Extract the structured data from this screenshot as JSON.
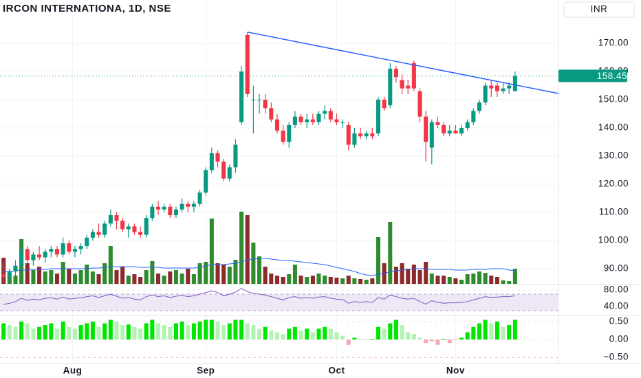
{
  "chart_data": [
    {
      "type": "candlestick",
      "title": "IRCON INTERNATIONA, 1D, NSE",
      "currency": "INR",
      "up_color": "#089981",
      "down_color": "#f23645",
      "volume_up_color": "#2e8b2e",
      "volume_down_color": "#8b2b2b",
      "volume_ma_color": "#2962ff",
      "trendline_color": "#2962ff",
      "grid": true,
      "xlim": [
        -0.6,
        93.3
      ],
      "ylim": [
        84.6,
        185.4
      ],
      "yticks": [
        {
          "value": 170,
          "label": "170.00"
        },
        {
          "value": 160,
          "label": "160.00"
        },
        {
          "value": 150,
          "label": "150.00"
        },
        {
          "value": 140,
          "label": "140.00"
        },
        {
          "value": 130,
          "label": "130.00"
        },
        {
          "value": 120,
          "label": "120.00"
        },
        {
          "value": 110,
          "label": "110.00"
        },
        {
          "value": 100,
          "label": "100.00"
        },
        {
          "value": 90,
          "label": "90.00"
        }
      ],
      "xticks": [
        {
          "value": 11.6,
          "label": "Aug"
        },
        {
          "value": 34,
          "label": "Sep"
        },
        {
          "value": 56,
          "label": "Oct"
        },
        {
          "value": 76,
          "label": "Nov"
        }
      ],
      "trendline": {
        "x": [
          41,
          93.3
        ],
        "y": [
          174,
          152.2
        ]
      },
      "ohlc": [
        [
          88,
          92,
          85,
          87
        ],
        [
          87,
          90,
          85,
          89
        ],
        [
          89,
          93,
          87,
          91
        ],
        [
          91,
          100,
          90,
          97
        ],
        [
          97,
          98,
          92,
          93
        ],
        [
          93,
          96,
          91,
          95
        ],
        [
          95,
          98,
          93,
          94
        ],
        [
          94,
          97,
          92,
          96
        ],
        [
          96,
          98,
          94,
          97
        ],
        [
          97,
          98,
          94,
          95
        ],
        [
          95,
          101,
          94,
          99
        ],
        [
          99,
          100,
          95,
          96
        ],
        [
          96,
          98,
          94,
          97
        ],
        [
          97,
          99,
          95,
          98
        ],
        [
          98,
          102,
          97,
          101
        ],
        [
          101,
          104,
          100,
          103
        ],
        [
          103,
          106,
          101,
          102
        ],
        [
          102,
          107,
          101,
          106
        ],
        [
          106,
          111,
          105,
          109
        ],
        [
          109,
          110,
          104,
          107
        ],
        [
          107,
          108,
          103,
          104
        ],
        [
          104,
          106,
          101,
          105
        ],
        [
          105,
          106,
          102,
          103
        ],
        [
          103,
          105,
          101,
          102
        ],
        [
          102,
          109,
          101,
          108
        ],
        [
          108,
          113,
          107,
          112
        ],
        [
          112,
          114,
          109,
          111
        ],
        [
          111,
          113,
          110,
          112
        ],
        [
          112,
          113,
          108,
          109
        ],
        [
          109,
          112,
          108,
          111
        ],
        [
          111,
          115,
          110,
          113
        ],
        [
          113,
          114,
          110,
          112
        ],
        [
          112,
          114,
          110,
          113
        ],
        [
          113,
          118,
          112,
          117
        ],
        [
          117,
          126,
          116,
          125
        ],
        [
          125,
          133,
          124,
          131
        ],
        [
          131,
          132,
          126,
          128
        ],
        [
          128,
          129,
          121,
          122
        ],
        [
          122,
          127,
          121,
          126
        ],
        [
          126,
          136,
          124,
          134
        ],
        [
          142,
          162,
          141,
          160
        ],
        [
          173,
          174,
          151,
          152
        ],
        [
          150,
          155,
          138,
          150
        ],
        [
          150,
          152,
          145,
          150
        ],
        [
          150,
          152,
          145,
          147
        ],
        [
          147,
          149,
          142,
          143
        ],
        [
          143,
          145,
          138,
          139
        ],
        [
          139,
          141,
          134,
          135
        ],
        [
          135,
          142,
          133,
          141
        ],
        [
          141,
          146,
          140,
          144
        ],
        [
          144,
          145,
          141,
          142
        ],
        [
          142,
          145,
          140,
          143
        ],
        [
          143,
          145,
          141,
          142
        ],
        [
          142,
          146,
          141,
          145
        ],
        [
          145,
          148,
          143,
          146
        ],
        [
          146,
          147,
          142,
          143
        ],
        [
          143,
          145,
          141,
          142
        ],
        [
          142,
          143,
          140,
          142
        ],
        [
          141,
          142,
          132,
          134
        ],
        [
          134,
          140,
          133,
          138
        ],
        [
          138,
          140,
          136,
          137
        ],
        [
          137,
          139,
          136,
          138
        ],
        [
          138,
          140,
          136,
          137
        ],
        [
          138,
          151,
          137,
          150
        ],
        [
          150,
          151,
          146,
          147
        ],
        [
          148,
          163,
          147,
          161
        ],
        [
          161,
          162,
          156,
          158
        ],
        [
          157,
          159,
          152,
          154
        ],
        [
          155,
          157,
          152,
          154
        ],
        [
          163,
          164,
          153,
          154
        ],
        [
          153,
          154,
          142,
          144
        ],
        [
          144,
          146,
          128,
          135
        ],
        [
          133,
          143,
          127,
          142
        ],
        [
          142,
          144,
          140,
          141
        ],
        [
          141,
          142,
          137,
          138
        ],
        [
          138,
          141,
          137,
          139
        ],
        [
          139,
          141,
          138,
          138
        ],
        [
          138,
          141,
          137,
          140
        ],
        [
          140,
          143,
          139,
          142
        ],
        [
          142,
          147,
          141,
          146
        ],
        [
          146,
          150,
          145,
          149
        ],
        [
          149,
          156,
          148,
          155
        ],
        [
          155,
          157,
          151,
          154
        ],
        [
          155,
          156,
          151,
          153
        ],
        [
          153,
          156,
          152,
          154
        ],
        [
          154,
          156,
          152,
          155
        ],
        [
          153,
          160,
          153,
          158.45
        ]
      ],
      "volume": [
        38,
        10,
        12,
        65,
        30,
        20,
        25,
        18,
        20,
        15,
        32,
        22,
        15,
        20,
        28,
        18,
        14,
        30,
        55,
        20,
        25,
        12,
        14,
        10,
        20,
        33,
        15,
        12,
        18,
        20,
        15,
        22,
        14,
        30,
        32,
        95,
        30,
        28,
        25,
        35,
        105,
        100,
        60,
        40,
        25,
        15,
        12,
        10,
        14,
        28,
        12,
        10,
        12,
        15,
        12,
        10,
        9,
        8,
        12,
        8,
        7,
        6,
        8,
        68,
        30,
        90,
        25,
        30,
        22,
        28,
        20,
        32,
        15,
        12,
        12,
        10,
        8,
        6,
        14,
        15,
        18,
        16,
        12,
        10,
        5,
        4,
        22
      ],
      "volume_ma": [
        18,
        18,
        19,
        20,
        20,
        21,
        21,
        21,
        22,
        22,
        22,
        22,
        22,
        22,
        22,
        23,
        23,
        24,
        25,
        25,
        25,
        25,
        25,
        24,
        24,
        24,
        24,
        23,
        23,
        23,
        23,
        23,
        23,
        24,
        26,
        28,
        28,
        28,
        29,
        30,
        32,
        35,
        36,
        37,
        37,
        36,
        35,
        34,
        34,
        33,
        32,
        31,
        30,
        29,
        28,
        26,
        24,
        22,
        20,
        18,
        15,
        13,
        12,
        14,
        15,
        18,
        19,
        20,
        21,
        22,
        22,
        22,
        21,
        21,
        21,
        21,
        20,
        20,
        20,
        21,
        21,
        21,
        22,
        22,
        22,
        20,
        19
      ]
    },
    {
      "type": "line",
      "color": "#7e57c2",
      "band": [
        30,
        70
      ],
      "band_color": "#ede7f6",
      "ylim": [
        20,
        91.7
      ],
      "yticks": [
        {
          "value": 80,
          "label": "80.00"
        },
        {
          "value": 40,
          "label": "40.00"
        }
      ],
      "values": [
        45,
        48,
        52,
        60,
        55,
        58,
        56,
        60,
        61,
        58,
        63,
        58,
        60,
        61,
        64,
        66,
        62,
        66,
        70,
        65,
        60,
        62,
        58,
        56,
        64,
        68,
        64,
        66,
        62,
        65,
        67,
        64,
        66,
        70,
        74,
        78,
        74,
        66,
        70,
        75,
        84,
        76,
        72,
        70,
        68,
        64,
        60,
        56,
        62,
        64,
        60,
        62,
        60,
        63,
        64,
        60,
        58,
        57,
        48,
        52,
        50,
        52,
        50,
        62,
        58,
        68,
        64,
        60,
        58,
        60,
        52,
        46,
        54,
        50,
        48,
        49,
        49,
        50,
        52,
        56,
        60,
        64,
        62,
        63,
        64,
        64,
        66
      ]
    },
    {
      "type": "bar",
      "up_color": "#00e600",
      "down_color": "#b2f2b2",
      "negative_color": "#f7a8b8",
      "ylim": [
        -0.65,
        0.65
      ],
      "yticks": [
        {
          "value": 0.5,
          "label": "0.50"
        },
        {
          "value": 0,
          "label": "0.00"
        },
        {
          "value": -0.5,
          "label": "−0.50"
        }
      ],
      "values": [
        0.45,
        0.4,
        0.35,
        0.5,
        0.45,
        0.3,
        0.35,
        0.4,
        0.45,
        0.3,
        0.5,
        0.35,
        0.3,
        0.4,
        0.45,
        0.5,
        0.35,
        0.45,
        0.55,
        0.5,
        0.4,
        0.42,
        0.35,
        0.3,
        0.45,
        0.55,
        0.45,
        0.4,
        0.35,
        0.45,
        0.5,
        0.4,
        0.45,
        0.5,
        0.55,
        0.55,
        0.5,
        0.4,
        0.45,
        0.55,
        0.55,
        0.45,
        0.4,
        0.3,
        0.35,
        0.25,
        0.2,
        0.15,
        0.3,
        0.35,
        0.25,
        0.3,
        0.2,
        0.3,
        0.35,
        0.3,
        0.2,
        0.1,
        -0.15,
        0.05,
        0.02,
        0.01,
        0.01,
        0.35,
        0.3,
        0.45,
        0.55,
        0.4,
        0.2,
        0.15,
        0.05,
        -0.1,
        -0.05,
        -0.15,
        0.02,
        -0.1,
        -0.02,
        0.05,
        0.2,
        0.35,
        0.45,
        0.55,
        0.45,
        0.5,
        0.35,
        0.4,
        0.55
      ]
    }
  ]
}
